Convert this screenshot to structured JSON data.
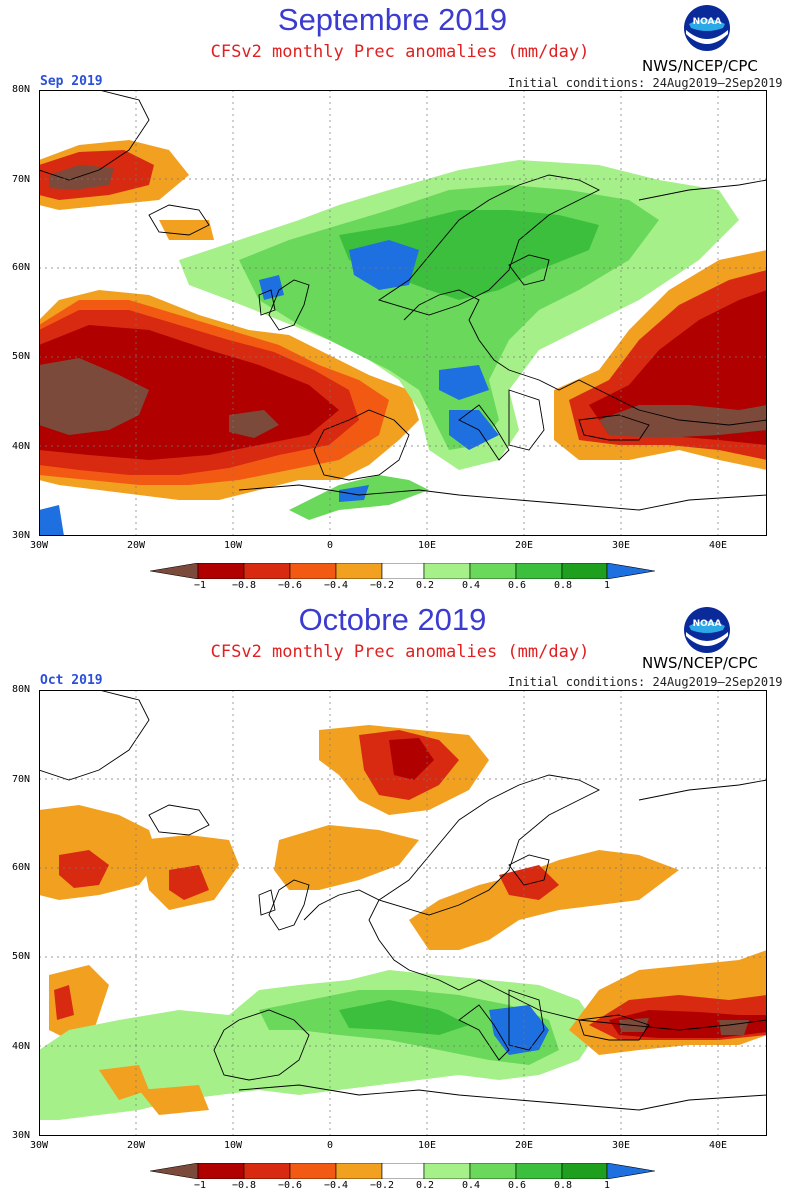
{
  "panels": [
    {
      "title": "Septembre 2019",
      "subtitle": "CFSv2 monthly Prec anomalies (mm/day)",
      "agency": "NWS/NCEP/CPC",
      "logo_text": "NOAA",
      "month_label": "Sep 2019",
      "initial_conditions": "Initial conditions: 24Aug2019—2Sep2019",
      "lat_labels": [
        "80N",
        "70N",
        "60N",
        "50N",
        "40N",
        "30N"
      ],
      "lon_labels": [
        "30W",
        "20W",
        "10W",
        "0",
        "10E",
        "20E",
        "30E",
        "40E"
      ]
    },
    {
      "title": "Octobre 2019",
      "subtitle": "CFSv2 monthly Prec anomalies (mm/day)",
      "agency": "NWS/NCEP/CPC",
      "logo_text": "NOAA",
      "month_label": "Oct 2019",
      "initial_conditions": "Initial conditions: 24Aug2019—2Sep2019",
      "lat_labels": [
        "80N",
        "70N",
        "60N",
        "50N",
        "40N",
        "30N"
      ],
      "lon_labels": [
        "30W",
        "20W",
        "10W",
        "0",
        "10E",
        "20E",
        "30E",
        "40E"
      ]
    }
  ],
  "colorbar": {
    "ticks": [
      "−1",
      "−0.8",
      "−0.6",
      "−0.4",
      "−0.2",
      "0.2",
      "0.4",
      "0.6",
      "0.8",
      "1"
    ],
    "colors": [
      "#7b4a3a",
      "#b00000",
      "#d82a10",
      "#f25a14",
      "#f2a020",
      "#ffffff",
      "#a6f08a",
      "#6ad85a",
      "#3cbf3c",
      "#1ea01e",
      "#1e6fe0"
    ]
  },
  "anomaly_regions": [
    [
      {
        "category": "dry-moderate",
        "color": "#f2a020",
        "region": "NE Atlantic / Iceland"
      },
      {
        "category": "very-dry",
        "color": "#b00000",
        "region": "Atlantic 40-55N"
      },
      {
        "category": "extreme-dry",
        "color": "#7b4a3a",
        "region": "Atlantic ~45N 25W"
      },
      {
        "category": "wet",
        "color": "#6ad85a",
        "region": "Scandinavia"
      },
      {
        "category": "very-wet",
        "color": "#1e6fe0",
        "region": "Norway / Alps / Balkans"
      },
      {
        "category": "very-dry",
        "color": "#b00000",
        "region": "Turkey / Russia"
      }
    ],
    [
      {
        "category": "dry",
        "color": "#d82a10",
        "region": "Norwegian Sea"
      },
      {
        "category": "dry-moderate",
        "color": "#f2a020",
        "region": "North Atlantic 55-60N"
      },
      {
        "category": "wet",
        "color": "#6ad85a",
        "region": "Iberia / Mediterranean"
      },
      {
        "category": "very-wet",
        "color": "#1e6fe0",
        "region": "Greece / Balkans"
      },
      {
        "category": "very-dry",
        "color": "#b00000",
        "region": "Turkey / Black Sea"
      }
    ]
  ]
}
